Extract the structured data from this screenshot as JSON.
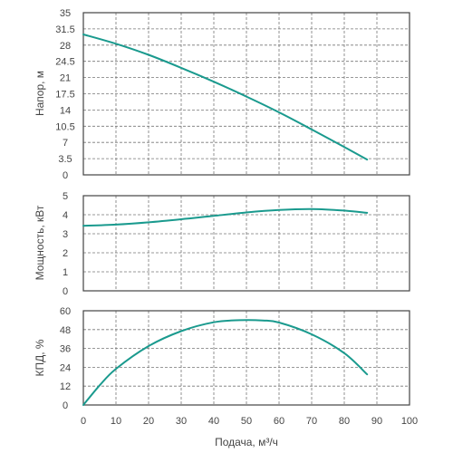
{
  "chart_data": [
    {
      "type": "line",
      "ylabel": "Напор, м",
      "xlim": [
        0,
        100
      ],
      "ylim": [
        0,
        35
      ],
      "yticks": [
        "0",
        "3.5",
        "7",
        "10.5",
        "14",
        "17.5",
        "21",
        "24.5",
        "28",
        "31.5",
        "35"
      ],
      "grid": true,
      "color": "#1a9a8e",
      "series": [
        {
          "x": [
            0,
            10,
            20,
            30,
            40,
            50,
            60,
            70,
            80,
            87
          ],
          "values": [
            30.3,
            28.3,
            25.9,
            23.1,
            20.1,
            16.9,
            13.5,
            9.8,
            6.0,
            3.3
          ]
        }
      ]
    },
    {
      "type": "line",
      "ylabel": "Мощность, кВт",
      "xlim": [
        0,
        100
      ],
      "ylim": [
        0,
        5
      ],
      "yticks": [
        "0",
        "1",
        "2",
        "3",
        "4",
        "5"
      ],
      "grid": true,
      "color": "#1a9a8e",
      "series": [
        {
          "x": [
            0,
            10,
            20,
            30,
            40,
            50,
            60,
            70,
            80,
            87
          ],
          "values": [
            3.42,
            3.48,
            3.6,
            3.76,
            3.94,
            4.12,
            4.25,
            4.3,
            4.22,
            4.1
          ]
        }
      ]
    },
    {
      "type": "line",
      "ylabel": "КПД, %",
      "xlabel": "Подача, м³/ч",
      "xlim": [
        0,
        100
      ],
      "ylim": [
        0,
        60
      ],
      "yticks": [
        "0",
        "12",
        "24",
        "36",
        "48",
        "60"
      ],
      "xticks": [
        "0",
        "10",
        "20",
        "30",
        "40",
        "50",
        "60",
        "70",
        "80",
        "90",
        "100"
      ],
      "grid": true,
      "color": "#1a9a8e",
      "series": [
        {
          "x": [
            0,
            5,
            10,
            20,
            30,
            40,
            48,
            55,
            60,
            70,
            80,
            87
          ],
          "values": [
            0,
            12.5,
            23,
            37.5,
            47,
            52.7,
            54,
            53.8,
            52.5,
            45,
            33,
            19.5
          ]
        }
      ]
    }
  ]
}
